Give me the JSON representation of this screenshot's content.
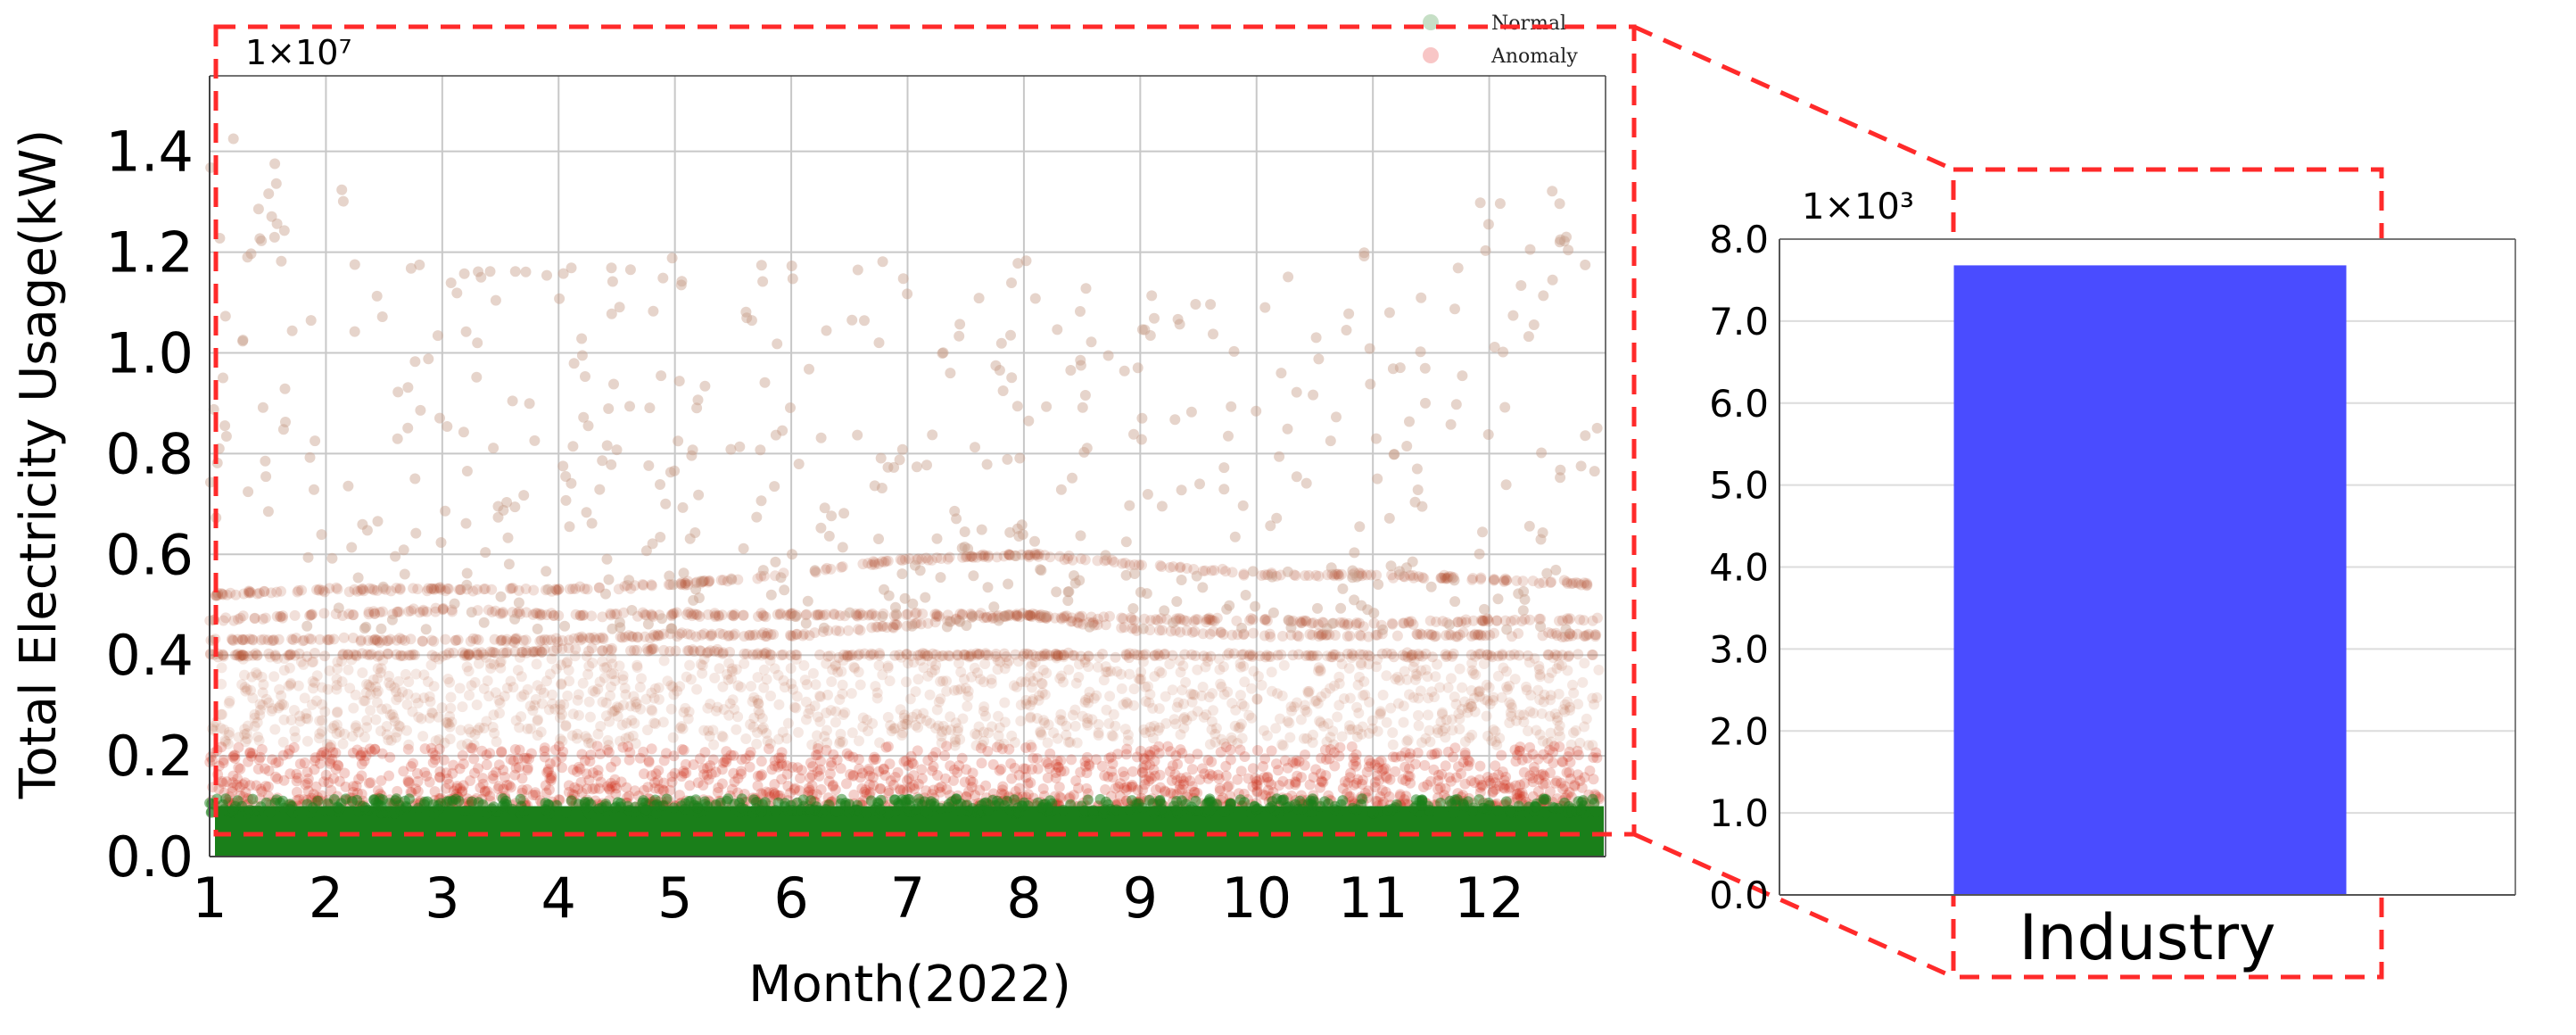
{
  "chart_data": [
    {
      "type": "scatter",
      "title": "",
      "xlabel": "Month(2022)",
      "ylabel": "Total Electricity Usage(kW)",
      "exponent_label": "1×10⁷",
      "x_ticks": [
        "1",
        "2",
        "3",
        "4",
        "5",
        "6",
        "7",
        "8",
        "9",
        "10",
        "11",
        "12"
      ],
      "y_ticks": [
        "0.0",
        "0.2",
        "0.4",
        "0.6",
        "0.8",
        "1.0",
        "1.2",
        "1.4"
      ],
      "xlim": [
        1,
        13
      ],
      "ylim": [
        0,
        1.55
      ],
      "grid": true,
      "legend": {
        "placement": "top-right",
        "entries": [
          {
            "label": "Normal",
            "color": "#1a7f1a"
          },
          {
            "label": "Anomaly",
            "color": "#f4a0a0"
          }
        ]
      },
      "series": [
        {
          "name": "Normal",
          "color": "#1a7f1a",
          "description_values": "dense band",
          "y_range": [
            0.0,
            0.1
          ]
        },
        {
          "name": "Anomaly",
          "color": "#c8a08c",
          "dense_color": "#cc2a14",
          "bands": [
            {
              "y": [
                0.52,
                0.53,
                0.53,
                0.53,
                0.54,
                0.56,
                0.59,
                0.6,
                0.58,
                0.56,
                0.56,
                0.55,
                0.54
              ]
            },
            {
              "y": [
                0.47,
                0.48,
                0.49,
                0.48,
                0.48,
                0.48,
                0.48,
                0.48,
                0.47,
                0.47,
                0.46,
                0.47,
                0.47
              ]
            },
            {
              "y": [
                0.43,
                0.43,
                0.43,
                0.43,
                0.44,
                0.44,
                0.46,
                0.48,
                0.45,
                0.44,
                0.44,
                0.44,
                0.44
              ]
            },
            {
              "y": [
                0.4,
                0.4,
                0.4,
                0.41,
                0.41,
                0.4,
                0.4,
                0.4,
                0.4,
                0.4,
                0.4,
                0.4,
                0.4
              ]
            }
          ],
          "scattered_y_range": [
            0.1,
            1.45
          ]
        }
      ],
      "zoom_box": {
        "y_range": [
          0.0,
          0.1
        ],
        "color": "#ff2a2a",
        "style": "dashed"
      }
    },
    {
      "type": "bar",
      "title": "",
      "exponent_label": "1×10³",
      "categories": [
        "Industry"
      ],
      "values": [
        7.68
      ],
      "y_ticks": [
        "0.0",
        "1.0",
        "2.0",
        "3.0",
        "4.0",
        "5.0",
        "6.0",
        "7.0",
        "8.0"
      ],
      "ylim": [
        0,
        8.0
      ],
      "grid": true,
      "bar_color": "#4a4cff"
    }
  ]
}
